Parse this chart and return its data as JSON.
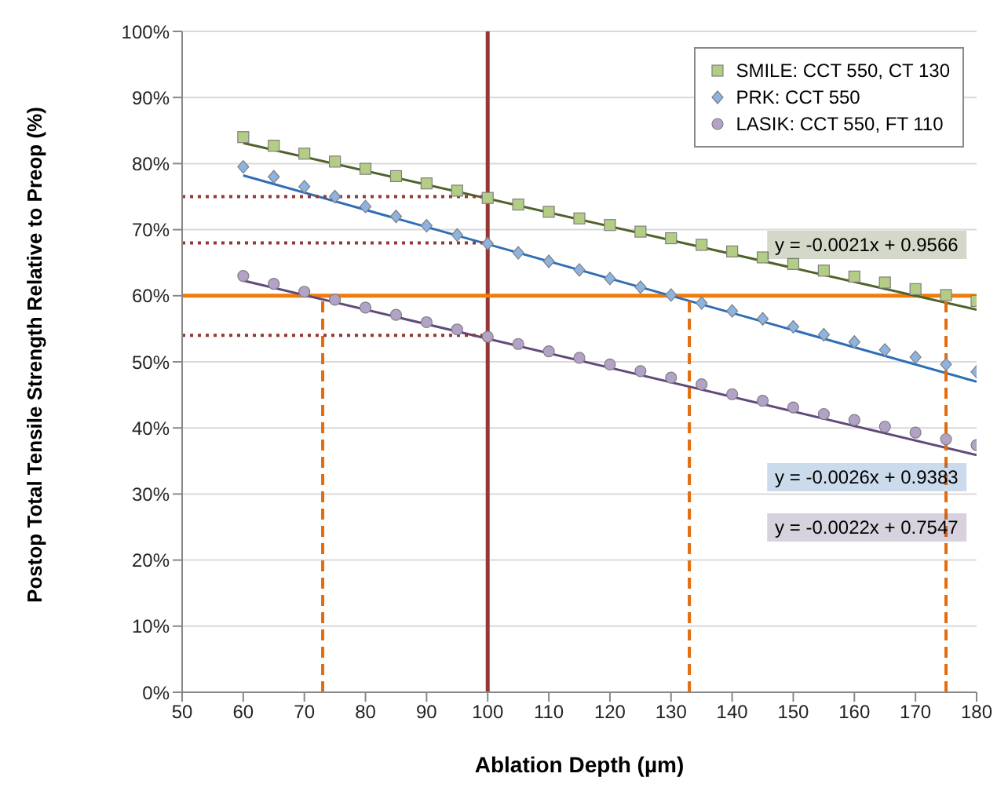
{
  "chart_data": {
    "type": "scatter",
    "xlabel": "Ablation Depth (µm)",
    "ylabel": "Postop Total Tensile Strength Relative to Preop (%)",
    "xlim": [
      50,
      180
    ],
    "xticks": [
      50,
      60,
      70,
      80,
      90,
      100,
      110,
      120,
      130,
      140,
      150,
      160,
      170,
      180
    ],
    "ylim": [
      0,
      100
    ],
    "yticks": [
      {
        "value": 0,
        "label": "0%"
      },
      {
        "value": 10,
        "label": "10%"
      },
      {
        "value": 20,
        "label": "20%"
      },
      {
        "value": 30,
        "label": "30%"
      },
      {
        "value": 40,
        "label": "40%"
      },
      {
        "value": 50,
        "label": "50%"
      },
      {
        "value": 60,
        "label": "60%"
      },
      {
        "value": 70,
        "label": "70%"
      },
      {
        "value": 80,
        "label": "80%"
      },
      {
        "value": 90,
        "label": "90%"
      },
      {
        "value": 100,
        "label": "100%"
      }
    ],
    "grid": "y",
    "legend": "top right",
    "x": [
      60,
      65,
      70,
      75,
      80,
      85,
      90,
      95,
      100,
      105,
      110,
      115,
      120,
      125,
      130,
      135,
      140,
      145,
      150,
      155,
      160,
      165,
      170,
      175,
      180
    ],
    "series": [
      {
        "name": "SMILE: CCT 550, CT 130",
        "color": "#b3cd85",
        "marker": "square",
        "values": [
          84,
          82.7,
          81.5,
          80.3,
          79.2,
          78.1,
          77,
          75.9,
          74.8,
          73.8,
          72.7,
          71.7,
          70.7,
          69.7,
          68.7,
          67.7,
          66.7,
          65.8,
          64.8,
          63.8,
          62.9,
          62,
          61,
          60.1,
          59.2
        ]
      },
      {
        "name": "PRK: CCT 550",
        "color": "#8db3e2",
        "marker": "diamond",
        "values": [
          79.5,
          78,
          76.5,
          75,
          73.5,
          72,
          70.6,
          69.2,
          67.9,
          66.5,
          65.2,
          63.9,
          62.6,
          61.3,
          60.1,
          58.9,
          57.7,
          56.5,
          55.3,
          54.1,
          53,
          51.8,
          50.7,
          49.6,
          48.5
        ]
      },
      {
        "name": "LASIK: CCT 550, FT 110",
        "color": "#b3a2c7",
        "marker": "circle",
        "values": [
          63,
          61.8,
          60.6,
          59.4,
          58.2,
          57.1,
          56,
          54.9,
          53.8,
          52.7,
          51.6,
          50.6,
          49.6,
          48.6,
          47.6,
          46.6,
          45.1,
          44.1,
          43.1,
          42.1,
          41.2,
          40.2,
          39.3,
          38.3,
          37.4
        ]
      },
      {
        "type": "line",
        "color": "#4f6228",
        "line_style": "solid",
        "x": [
          60,
          180
        ],
        "values": [
          83.1,
          57.9
        ]
      },
      {
        "type": "line",
        "color": "#2f6eb5",
        "line_style": "solid",
        "x": [
          60,
          180
        ],
        "values": [
          78.2,
          47
        ]
      },
      {
        "type": "line",
        "color": "#604a7b",
        "line_style": "solid",
        "x": [
          60,
          180
        ],
        "values": [
          62.3,
          35.9
        ]
      },
      {
        "type": "line",
        "color": "#e46c0a",
        "line_style": "dashed",
        "x": [
          73,
          73
        ],
        "values": [
          0,
          60
        ]
      },
      {
        "type": "line",
        "color": "#e46c0a",
        "line_style": "dashed",
        "x": [
          133,
          133
        ],
        "values": [
          0,
          60
        ]
      },
      {
        "type": "line",
        "color": "#e46c0a",
        "line_style": "dashed",
        "x": [
          175,
          175
        ],
        "values": [
          0,
          60
        ]
      },
      {
        "type": "line",
        "color": "#953735",
        "line_style": "dotted",
        "x": [
          50,
          100
        ],
        "values": [
          75,
          75
        ]
      },
      {
        "type": "line",
        "color": "#953735",
        "line_style": "dotted",
        "x": [
          50,
          100
        ],
        "values": [
          68,
          68
        ]
      },
      {
        "type": "line",
        "color": "#953735",
        "line_style": "dotted",
        "x": [
          50,
          100
        ],
        "values": [
          54,
          54
        ]
      }
    ],
    "ref_lines": [
      {
        "axis": "x",
        "value": 100,
        "color": "#953735",
        "line_style": "solid"
      },
      {
        "axis": "y",
        "value": 60,
        "color": "#f07c0a",
        "line_style": "solid"
      }
    ],
    "annotations": [
      "y = -0.0021x + 0.9566",
      "y = -0.0026x + 0.9383",
      "y = -0.0022x + 0.7547"
    ]
  }
}
